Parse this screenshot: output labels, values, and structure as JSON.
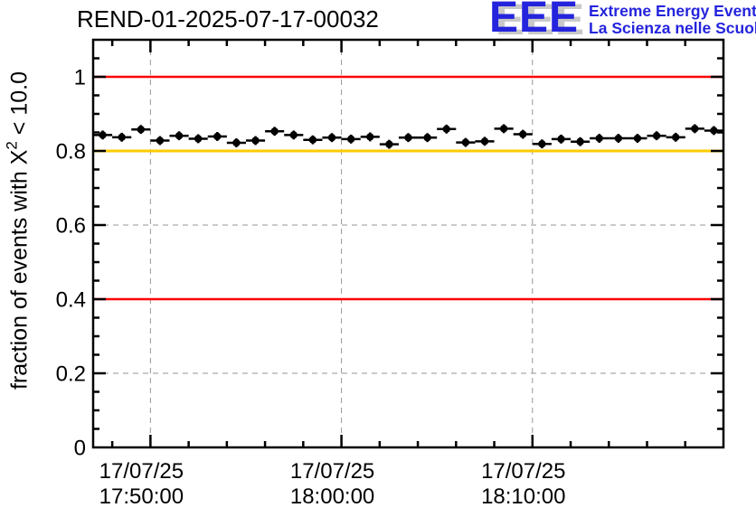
{
  "logo": {
    "letters": "EEE",
    "line1": "Extreme Energy Events",
    "line2": "La Scienza nelle Scuole",
    "blue": "#2424dd",
    "shadow": "#c8c8c8"
  },
  "chart_data": {
    "type": "scatter",
    "title": "REND-01-2025-07-17-00032",
    "ylabel_parts": {
      "prefix": "fraction of events with X",
      "sup": "2",
      "suffix": " < 10.0"
    },
    "ylabel_plain": "fraction of events with X2 < 10.0",
    "x_axis": {
      "start": "17:47:00",
      "end": "18:20:00",
      "date": "17/07/25",
      "major_ticks": [
        {
          "time": "17:50:00",
          "label_line1": "17/07/25",
          "label_line2": "17:50:00"
        },
        {
          "time": "18:00:00",
          "label_line1": "17/07/25",
          "label_line2": "18:00:00"
        },
        {
          "time": "18:10:00",
          "label_line1": "17/07/25",
          "label_line2": "18:10:00"
        }
      ],
      "minor_tick_every_minutes": 2
    },
    "y_axis": {
      "range": [
        0,
        1.1
      ],
      "major_ticks": [
        {
          "value": 0,
          "label": "0"
        },
        {
          "value": 0.2,
          "label": "0.2"
        },
        {
          "value": 0.4,
          "label": "0.4"
        },
        {
          "value": 0.6,
          "label": "0.6"
        },
        {
          "value": 0.8,
          "label": "0.8"
        },
        {
          "value": 1.0,
          "label": "1"
        }
      ],
      "minor_step": 0.05
    },
    "grid": true,
    "grid_color": "#969696",
    "reference_lines": [
      {
        "y": 1.0,
        "color": "#ff0000",
        "width": 2.5
      },
      {
        "y": 0.8,
        "color": "#ffcc00",
        "width": 3
      },
      {
        "y": 0.4,
        "color": "#ff0000",
        "width": 2.5
      }
    ],
    "series": [
      {
        "name": "fraction of events with chi2 < 10",
        "marker": "filled-circle",
        "color": "#000000",
        "bin_width_minutes": 1,
        "yerr": 0.012,
        "points": [
          {
            "t": "17:47:30",
            "v": 0.843
          },
          {
            "t": "17:48:30",
            "v": 0.837
          },
          {
            "t": "17:49:30",
            "v": 0.858
          },
          {
            "t": "17:50:30",
            "v": 0.828
          },
          {
            "t": "17:51:30",
            "v": 0.841
          },
          {
            "t": "17:52:30",
            "v": 0.833
          },
          {
            "t": "17:53:30",
            "v": 0.839
          },
          {
            "t": "17:54:30",
            "v": 0.822
          },
          {
            "t": "17:55:30",
            "v": 0.828
          },
          {
            "t": "17:56:30",
            "v": 0.853
          },
          {
            "t": "17:57:30",
            "v": 0.843
          },
          {
            "t": "17:58:30",
            "v": 0.83
          },
          {
            "t": "17:59:30",
            "v": 0.836
          },
          {
            "t": "18:00:30",
            "v": 0.832
          },
          {
            "t": "18:01:30",
            "v": 0.838
          },
          {
            "t": "18:02:30",
            "v": 0.818
          },
          {
            "t": "18:03:30",
            "v": 0.836
          },
          {
            "t": "18:04:30",
            "v": 0.836
          },
          {
            "t": "18:05:30",
            "v": 0.859
          },
          {
            "t": "18:06:30",
            "v": 0.823
          },
          {
            "t": "18:07:30",
            "v": 0.826
          },
          {
            "t": "18:08:30",
            "v": 0.86
          },
          {
            "t": "18:09:30",
            "v": 0.845
          },
          {
            "t": "18:10:30",
            "v": 0.819
          },
          {
            "t": "18:11:30",
            "v": 0.832
          },
          {
            "t": "18:12:30",
            "v": 0.825
          },
          {
            "t": "18:13:30",
            "v": 0.834
          },
          {
            "t": "18:14:30",
            "v": 0.834
          },
          {
            "t": "18:15:30",
            "v": 0.834
          },
          {
            "t": "18:16:30",
            "v": 0.841
          },
          {
            "t": "18:17:30",
            "v": 0.837
          },
          {
            "t": "18:18:30",
            "v": 0.86
          },
          {
            "t": "18:19:30",
            "v": 0.855
          }
        ]
      }
    ]
  }
}
